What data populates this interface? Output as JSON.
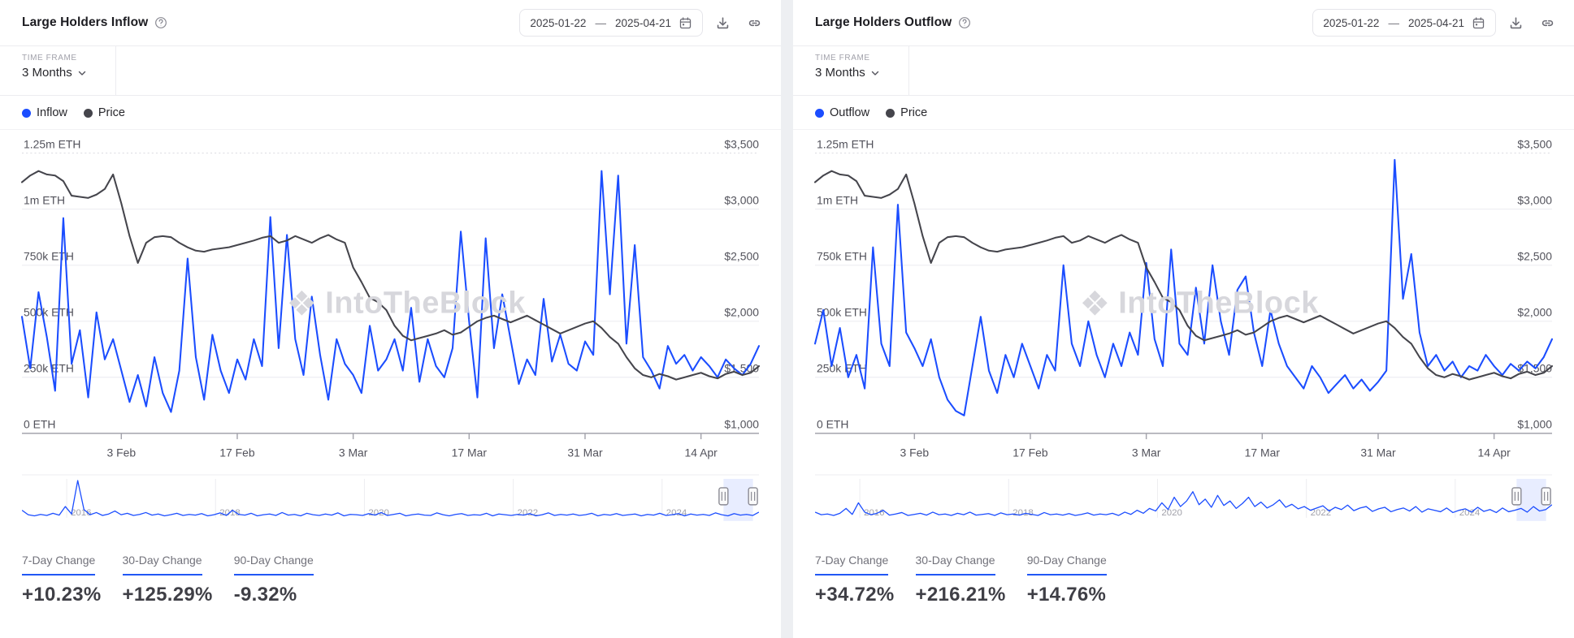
{
  "accent_blue": "#1b4dff",
  "price_color": "#45454c",
  "panels": [
    {
      "title": "Large Holders Inflow",
      "date_start": "2025-01-22",
      "date_separator": "—",
      "date_end": "2025-04-21",
      "time_frame_label": "TIME FRAME",
      "time_frame_value": "3 Months",
      "watermark": "IntoTheBlock",
      "stats": [
        {
          "label": "7-Day Change",
          "value": "+10.23%"
        },
        {
          "label": "30-Day Change",
          "value": "+125.29%"
        },
        {
          "label": "90-Day Change",
          "value": "-9.32%"
        }
      ]
    },
    {
      "title": "Large Holders Outflow",
      "date_start": "2025-01-22",
      "date_separator": "—",
      "date_end": "2025-04-21",
      "time_frame_label": "TIME FRAME",
      "time_frame_value": "3 Months",
      "watermark": "IntoTheBlock",
      "stats": [
        {
          "label": "7-Day Change",
          "value": "+34.72%"
        },
        {
          "label": "30-Day Change",
          "value": "+216.21%"
        },
        {
          "label": "90-Day Change",
          "value": "+14.76%"
        }
      ]
    }
  ],
  "chart_data": [
    {
      "type": "line",
      "title": "Large Holders Inflow vs Price",
      "x_start": "2025-01-22",
      "x_end": "2025-04-21",
      "x_total_days": 89,
      "x_tick_labels": [
        "3 Feb",
        "17 Feb",
        "3 Mar",
        "17 Mar",
        "31 Mar",
        "14 Apr"
      ],
      "x_tick_day_offsets": [
        12,
        26,
        40,
        54,
        68,
        82
      ],
      "left_axis": {
        "unit": "ETH",
        "min": 0,
        "max_thousand_eth": 1250,
        "labels": [
          "1.25m ETH",
          "1m ETH",
          "750k ETH",
          "500k ETH",
          "250k ETH",
          "0 ETH"
        ]
      },
      "right_axis": {
        "unit": "USD",
        "min": 1000,
        "max": 3500,
        "labels": [
          "$3,500",
          "$3,000",
          "$2,500",
          "$2,000",
          "$1,500",
          "$1,000"
        ]
      },
      "grid": true,
      "legend_position": "top-left",
      "series": [
        {
          "name": "Inflow",
          "axis": "left",
          "color": "#1b4dff",
          "values_unit": "thousand ETH",
          "values": [
            520,
            290,
            630,
            430,
            190,
            960,
            310,
            460,
            160,
            540,
            330,
            420,
            280,
            140,
            260,
            120,
            340,
            180,
            95,
            280,
            780,
            340,
            150,
            440,
            280,
            180,
            330,
            240,
            420,
            300,
            965,
            380,
            885,
            420,
            260,
            610,
            350,
            150,
            420,
            310,
            260,
            180,
            480,
            280,
            330,
            420,
            280,
            560,
            230,
            420,
            300,
            250,
            380,
            900,
            500,
            160,
            870,
            380,
            620,
            420,
            220,
            330,
            260,
            600,
            320,
            440,
            310,
            280,
            410,
            350,
            1170,
            620,
            1150,
            400,
            840,
            340,
            280,
            200,
            390,
            310,
            350,
            280,
            340,
            300,
            250,
            330,
            290,
            260,
            310,
            390
          ]
        },
        {
          "name": "Price",
          "axis": "right",
          "color": "#45454c",
          "values_unit": "USD",
          "values": [
            3240,
            3300,
            3340,
            3310,
            3300,
            3250,
            3120,
            3110,
            3100,
            3130,
            3180,
            3310,
            3050,
            2760,
            2520,
            2700,
            2750,
            2760,
            2750,
            2700,
            2660,
            2630,
            2620,
            2640,
            2650,
            2660,
            2680,
            2700,
            2720,
            2745,
            2760,
            2700,
            2720,
            2760,
            2730,
            2700,
            2740,
            2770,
            2730,
            2700,
            2480,
            2350,
            2210,
            2170,
            2100,
            1960,
            1870,
            1830,
            1850,
            1870,
            1890,
            1920,
            1880,
            1900,
            1950,
            2000,
            2030,
            2050,
            2020,
            1990,
            2020,
            2050,
            2010,
            1970,
            1930,
            1890,
            1920,
            1950,
            1980,
            2000,
            1940,
            1860,
            1800,
            1680,
            1580,
            1520,
            1500,
            1530,
            1510,
            1480,
            1500,
            1520,
            1540,
            1510,
            1490,
            1530,
            1550,
            1520,
            1540,
            1600
          ]
        }
      ],
      "minimap": {
        "year_labels": [
          "2016",
          "2018",
          "2020",
          "2022",
          "2024"
        ],
        "year_start": 2015.4,
        "year_span": 9.9,
        "brush": {
          "start_frac": 0.952,
          "end_frac": 0.992
        },
        "values_relative": [
          20,
          8,
          5,
          9,
          6,
          12,
          7,
          30,
          10,
          100,
          22,
          8,
          14,
          6,
          10,
          18,
          8,
          12,
          6,
          9,
          14,
          7,
          10,
          5,
          8,
          12,
          6,
          9,
          7,
          11,
          5,
          8,
          13,
          6,
          20,
          9,
          7,
          12,
          5,
          8,
          10,
          6,
          14,
          7,
          9,
          5,
          12,
          8,
          6,
          10,
          7,
          13,
          5,
          9,
          8,
          6,
          11,
          7,
          14,
          6,
          9,
          12,
          5,
          8,
          10,
          7,
          6,
          13,
          8,
          5,
          9,
          11,
          6,
          8,
          7,
          12,
          5,
          10,
          8,
          6,
          9,
          7,
          11,
          5,
          8,
          13,
          6,
          9,
          7,
          10,
          6,
          8,
          12,
          5,
          9,
          7,
          11,
          6,
          8,
          10,
          5,
          9,
          7,
          12,
          6,
          8,
          11,
          5,
          10,
          7,
          9,
          6,
          13,
          8,
          5,
          11,
          7,
          9,
          6,
          15
        ]
      }
    },
    {
      "type": "line",
      "title": "Large Holders Outflow vs Price",
      "x_start": "2025-01-22",
      "x_end": "2025-04-21",
      "x_total_days": 89,
      "x_tick_labels": [
        "3 Feb",
        "17 Feb",
        "3 Mar",
        "17 Mar",
        "31 Mar",
        "14 Apr"
      ],
      "x_tick_day_offsets": [
        12,
        26,
        40,
        54,
        68,
        82
      ],
      "left_axis": {
        "unit": "ETH",
        "min": 0,
        "max_thousand_eth": 1250,
        "labels": [
          "1.25m ETH",
          "1m ETH",
          "750k ETH",
          "500k ETH",
          "250k ETH",
          "0 ETH"
        ]
      },
      "right_axis": {
        "unit": "USD",
        "min": 1000,
        "max": 3500,
        "labels": [
          "$3,500",
          "$3,000",
          "$2,500",
          "$2,000",
          "$1,500",
          "$1,000"
        ]
      },
      "grid": true,
      "legend_position": "top-left",
      "series": [
        {
          "name": "Outflow",
          "axis": "left",
          "color": "#1b4dff",
          "values_unit": "thousand ETH",
          "values": [
            400,
            550,
            300,
            470,
            250,
            350,
            200,
            830,
            400,
            300,
            1020,
            450,
            380,
            300,
            420,
            250,
            150,
            100,
            80,
            300,
            520,
            280,
            180,
            350,
            250,
            400,
            300,
            200,
            350,
            280,
            750,
            400,
            300,
            500,
            350,
            250,
            400,
            300,
            450,
            350,
            760,
            420,
            300,
            820,
            400,
            350,
            650,
            400,
            750,
            500,
            350,
            640,
            700,
            450,
            300,
            550,
            400,
            300,
            250,
            200,
            300,
            250,
            180,
            220,
            260,
            200,
            240,
            190,
            230,
            280,
            1220,
            600,
            800,
            450,
            300,
            350,
            280,
            320,
            250,
            300,
            280,
            350,
            300,
            260,
            310,
            280,
            320,
            290,
            340,
            420
          ]
        },
        {
          "name": "Price",
          "axis": "right",
          "color": "#45454c",
          "values_unit": "USD",
          "values": [
            3240,
            3300,
            3340,
            3310,
            3300,
            3250,
            3120,
            3110,
            3100,
            3130,
            3180,
            3310,
            3050,
            2760,
            2520,
            2700,
            2750,
            2760,
            2750,
            2700,
            2660,
            2630,
            2620,
            2640,
            2650,
            2660,
            2680,
            2700,
            2720,
            2745,
            2760,
            2700,
            2720,
            2760,
            2730,
            2700,
            2740,
            2770,
            2730,
            2700,
            2480,
            2350,
            2210,
            2170,
            2100,
            1960,
            1870,
            1830,
            1850,
            1870,
            1890,
            1920,
            1880,
            1900,
            1950,
            2000,
            2030,
            2050,
            2020,
            1990,
            2020,
            2050,
            2010,
            1970,
            1930,
            1890,
            1920,
            1950,
            1980,
            2000,
            1940,
            1860,
            1800,
            1680,
            1580,
            1520,
            1500,
            1530,
            1510,
            1480,
            1500,
            1520,
            1540,
            1510,
            1490,
            1530,
            1550,
            1520,
            1540,
            1600
          ]
        }
      ],
      "minimap": {
        "year_labels": [
          "2016",
          "2018",
          "2020",
          "2022",
          "2024"
        ],
        "year_start": 2015.4,
        "year_span": 9.9,
        "brush": {
          "start_frac": 0.952,
          "end_frac": 0.992
        },
        "values_relative": [
          15,
          8,
          10,
          6,
          12,
          25,
          9,
          40,
          15,
          8,
          12,
          20,
          7,
          10,
          14,
          6,
          9,
          12,
          7,
          15,
          8,
          10,
          6,
          12,
          8,
          15,
          7,
          9,
          11,
          6,
          13,
          8,
          10,
          7,
          12,
          9,
          6,
          14,
          8,
          10,
          7,
          11,
          6,
          9,
          13,
          7,
          10,
          8,
          12,
          6,
          15,
          9,
          20,
          12,
          25,
          18,
          40,
          22,
          55,
          30,
          45,
          70,
          35,
          50,
          28,
          60,
          33,
          45,
          25,
          38,
          55,
          30,
          42,
          26,
          35,
          48,
          28,
          36,
          24,
          30,
          20,
          26,
          32,
          18,
          28,
          22,
          34,
          19,
          26,
          30,
          17,
          24,
          28,
          16,
          22,
          26,
          18,
          30,
          15,
          24,
          20,
          16,
          26,
          14,
          20,
          24,
          15,
          28,
          17,
          22,
          14,
          26,
          16,
          20,
          25,
          15,
          30,
          18,
          22,
          35
        ]
      }
    }
  ]
}
